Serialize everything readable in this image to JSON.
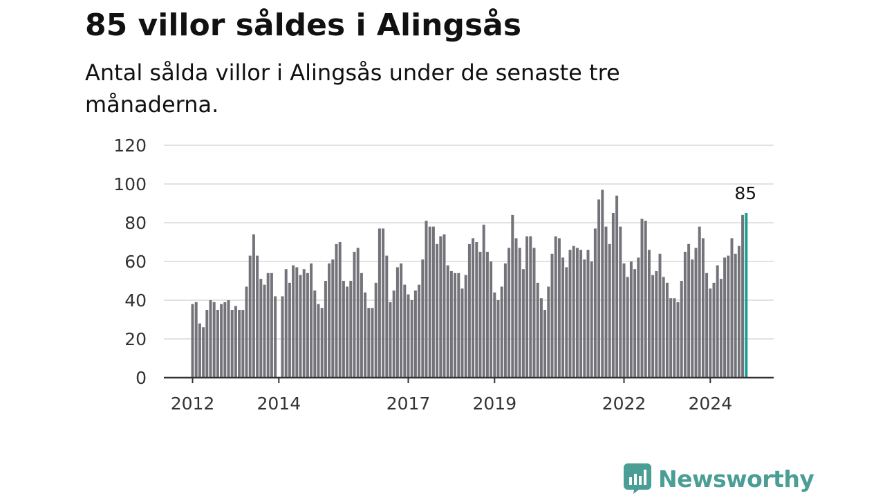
{
  "title": "85 villor såldes i Alingsås",
  "subtitle": "Antal sålda villor i Alingsås under de senaste tre månaderna.",
  "brand": {
    "name": "Newsworthy",
    "icon": "bar-chart-speech-bubble-icon",
    "color": "#4a9e95"
  },
  "colors": {
    "bar": "#74737a",
    "highlight": "#1a9e94",
    "grid": "#d9d9d9",
    "axis": "#333333"
  },
  "chart_data": {
    "type": "bar",
    "title": "85 villor såldes i Alingsås",
    "xlabel": "",
    "ylabel": "",
    "ylim": [
      0,
      120
    ],
    "yticks": [
      "0",
      "20",
      "40",
      "60",
      "80",
      "100",
      "120"
    ],
    "xticks": [
      "2012",
      "2014",
      "2017",
      "2019",
      "2022",
      "2024"
    ],
    "grid": true,
    "start": "2012-01",
    "highlight_label": "85",
    "values": [
      38,
      39,
      28,
      26,
      35,
      40,
      39,
      35,
      38,
      39,
      40,
      35,
      37,
      35,
      35,
      47,
      63,
      74,
      63,
      51,
      48,
      54,
      54,
      42,
      null,
      42,
      56,
      49,
      58,
      57,
      53,
      56,
      54,
      59,
      45,
      38,
      36,
      50,
      59,
      61,
      69,
      70,
      50,
      47,
      50,
      65,
      67,
      54,
      44,
      36,
      36,
      49,
      77,
      77,
      63,
      39,
      45,
      57,
      59,
      48,
      43,
      40,
      45,
      48,
      61,
      81,
      78,
      78,
      69,
      73,
      74,
      58,
      55,
      54,
      54,
      46,
      53,
      69,
      72,
      70,
      65,
      79,
      65,
      60,
      44,
      40,
      47,
      59,
      67,
      84,
      72,
      67,
      56,
      73,
      73,
      67,
      49,
      41,
      35,
      47,
      64,
      73,
      72,
      62,
      57,
      66,
      68,
      67,
      66,
      61,
      66,
      60,
      77,
      92,
      97,
      78,
      69,
      85,
      94,
      78,
      59,
      52,
      60,
      56,
      62,
      82,
      81,
      66,
      53,
      55,
      64,
      52,
      49,
      41,
      41,
      39,
      50,
      65,
      69,
      61,
      67,
      78,
      72,
      54,
      46,
      49,
      58,
      51,
      62,
      63,
      72,
      64,
      68,
      84,
      85
    ]
  }
}
